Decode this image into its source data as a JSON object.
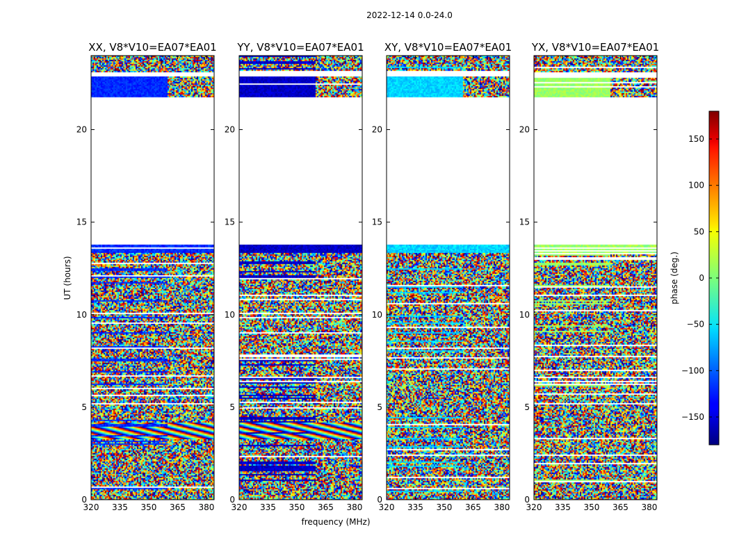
{
  "chart_data": {
    "type": "heatmap",
    "suptitle": "2022-12-14 0.0-24.0",
    "xlabel": "frequency (MHz)",
    "ylabel": "UT (hours)",
    "xlim": [
      320,
      384
    ],
    "ylim": [
      0,
      24
    ],
    "xticks": [
      320,
      335,
      350,
      365,
      380
    ],
    "yticks": [
      0,
      5,
      10,
      15,
      20
    ],
    "panels": [
      {
        "title": "XX, V8*V10=EA07*EA01",
        "base_phase": -120
      },
      {
        "title": "YY, V8*V10=EA07*EA01",
        "base_phase": -155
      },
      {
        "title": "XY, V8*V10=EA07*EA01",
        "base_phase": -60
      },
      {
        "title": "YX, V8*V10=EA07*EA01",
        "base_phase": 10
      }
    ],
    "data_gaps_hours": [
      [
        13.8,
        21.6
      ],
      [
        21.6,
        21.8
      ],
      [
        22.9,
        23.1
      ]
    ],
    "colorbar": {
      "label": "phase (deg.)",
      "range": [
        -180,
        180
      ],
      "ticks": [
        150,
        100,
        50,
        0,
        -50,
        -100,
        -150
      ],
      "tick_labels": [
        "150",
        "100",
        "50",
        "0",
        "−50",
        "−100",
        "−150"
      ],
      "colormap": "jet"
    }
  }
}
